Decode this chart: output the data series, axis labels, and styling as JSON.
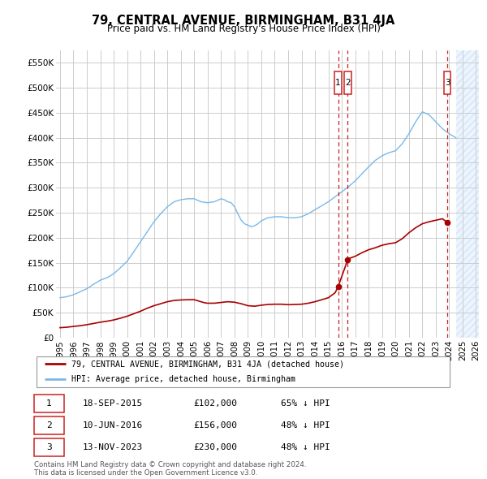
{
  "title": "79, CENTRAL AVENUE, BIRMINGHAM, B31 4JA",
  "subtitle": "Price paid vs. HM Land Registry's House Price Index (HPI)",
  "legend_label_red": "79, CENTRAL AVENUE, BIRMINGHAM, B31 4JA (detached house)",
  "legend_label_blue": "HPI: Average price, detached house, Birmingham",
  "footer_line1": "Contains HM Land Registry data © Crown copyright and database right 2024.",
  "footer_line2": "This data is licensed under the Open Government Licence v3.0.",
  "transactions": [
    {
      "label": "1",
      "date": "18-SEP-2015",
      "price": 102000,
      "pct": "65% ↓ HPI",
      "x": 2015.72
    },
    {
      "label": "2",
      "date": "10-JUN-2016",
      "price": 156000,
      "pct": "48% ↓ HPI",
      "x": 2016.44
    },
    {
      "label": "3",
      "date": "13-NOV-2023",
      "price": 230000,
      "pct": "48% ↓ HPI",
      "x": 2023.87
    }
  ],
  "hpi_color": "#7ab8e8",
  "sale_color": "#aa0000",
  "vline_color": "#cc2222",
  "grid_color": "#cccccc",
  "background_color": "#ffffff",
  "hpi_data_x": [
    1995.0,
    1995.5,
    1996.0,
    1996.5,
    1997.0,
    1997.5,
    1998.0,
    1998.5,
    1999.0,
    1999.5,
    2000.0,
    2000.5,
    2001.0,
    2001.5,
    2002.0,
    2002.5,
    2003.0,
    2003.5,
    2004.0,
    2004.5,
    2005.0,
    2005.5,
    2006.0,
    2006.5,
    2007.0,
    2007.25,
    2007.5,
    2007.75,
    2008.0,
    2008.25,
    2008.5,
    2008.75,
    2009.0,
    2009.25,
    2009.5,
    2009.75,
    2010.0,
    2010.5,
    2011.0,
    2011.5,
    2012.0,
    2012.5,
    2013.0,
    2013.5,
    2014.0,
    2014.5,
    2015.0,
    2015.5,
    2016.0,
    2016.5,
    2017.0,
    2017.5,
    2018.0,
    2018.5,
    2019.0,
    2019.5,
    2020.0,
    2020.5,
    2021.0,
    2021.5,
    2022.0,
    2022.5,
    2023.0,
    2023.5,
    2024.0,
    2024.5
  ],
  "hpi_data_y": [
    80000,
    82000,
    86000,
    92000,
    98000,
    107000,
    115000,
    120000,
    128000,
    140000,
    153000,
    172000,
    192000,
    212000,
    232000,
    248000,
    262000,
    272000,
    276000,
    278000,
    278000,
    272000,
    270000,
    272000,
    278000,
    276000,
    272000,
    270000,
    262000,
    248000,
    235000,
    228000,
    225000,
    222000,
    224000,
    228000,
    234000,
    240000,
    242000,
    242000,
    240000,
    240000,
    242000,
    248000,
    256000,
    264000,
    272000,
    282000,
    292000,
    302000,
    314000,
    328000,
    342000,
    355000,
    364000,
    370000,
    374000,
    388000,
    408000,
    432000,
    452000,
    446000,
    432000,
    418000,
    408000,
    400000
  ],
  "sale_data_x": [
    1995.0,
    1995.5,
    1996.0,
    1996.5,
    1997.0,
    1997.5,
    1998.0,
    1998.5,
    1999.0,
    1999.5,
    2000.0,
    2000.5,
    2001.0,
    2001.5,
    2002.0,
    2002.5,
    2003.0,
    2003.5,
    2004.0,
    2004.5,
    2005.0,
    2005.25,
    2005.5,
    2005.75,
    2006.0,
    2006.5,
    2007.0,
    2007.5,
    2008.0,
    2008.5,
    2009.0,
    2009.5,
    2010.0,
    2010.5,
    2011.0,
    2011.5,
    2012.0,
    2012.5,
    2013.0,
    2013.5,
    2014.0,
    2014.5,
    2015.0,
    2015.5,
    2015.72,
    2016.44,
    2016.5,
    2017.0,
    2017.5,
    2018.0,
    2018.5,
    2019.0,
    2019.5,
    2020.0,
    2020.5,
    2021.0,
    2021.5,
    2022.0,
    2022.5,
    2023.0,
    2023.5,
    2023.87
  ],
  "sale_data_y": [
    20000,
    21000,
    22500,
    24000,
    26000,
    28500,
    31000,
    33000,
    35500,
    39000,
    43000,
    48000,
    53000,
    59000,
    64000,
    68000,
    72000,
    74500,
    75500,
    76000,
    76000,
    74000,
    72000,
    70000,
    69000,
    69000,
    70500,
    72000,
    71000,
    68000,
    64000,
    63000,
    65000,
    66500,
    67000,
    67000,
    66000,
    66500,
    67000,
    69000,
    72000,
    76000,
    80000,
    90000,
    102000,
    156000,
    158000,
    163000,
    170000,
    176000,
    180000,
    185000,
    188000,
    190000,
    198000,
    210000,
    220000,
    228000,
    232000,
    235000,
    238000,
    230000
  ],
  "ylim": [
    0,
    575000
  ],
  "xlim": [
    1994.7,
    2026.2
  ],
  "yticks": [
    0,
    50000,
    100000,
    150000,
    200000,
    250000,
    300000,
    350000,
    400000,
    450000,
    500000,
    550000
  ],
  "ytick_labels": [
    "£0",
    "£50K",
    "£100K",
    "£150K",
    "£200K",
    "£250K",
    "£300K",
    "£350K",
    "£400K",
    "£450K",
    "£500K",
    "£550K"
  ],
  "xticks": [
    1995,
    1996,
    1997,
    1998,
    1999,
    2000,
    2001,
    2002,
    2003,
    2004,
    2005,
    2006,
    2007,
    2008,
    2009,
    2010,
    2011,
    2012,
    2013,
    2014,
    2015,
    2016,
    2017,
    2018,
    2019,
    2020,
    2021,
    2022,
    2023,
    2024,
    2025,
    2026
  ],
  "hatch_start": 2024.5,
  "title_fontsize": 10.5,
  "subtitle_fontsize": 8.5
}
